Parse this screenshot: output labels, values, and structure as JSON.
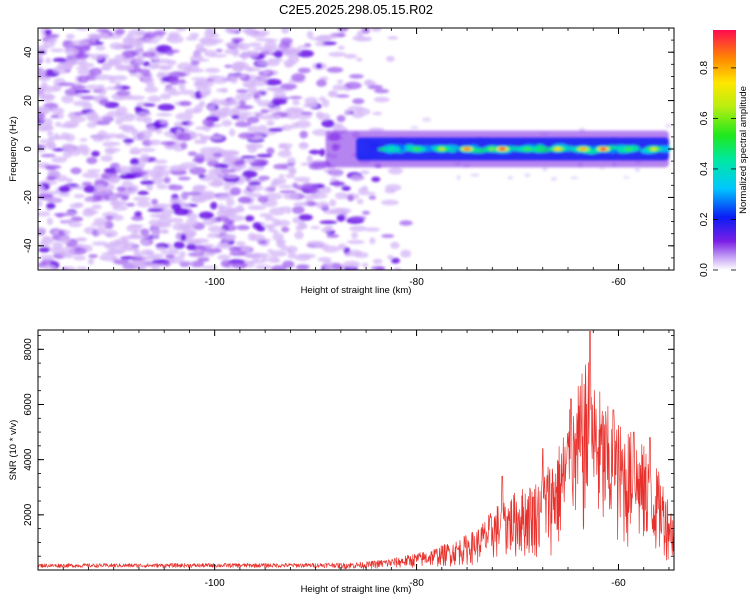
{
  "figure_title": "C2E5.2025.298.05.15.R02",
  "chart_data": [
    {
      "type": "heatmap",
      "title": "",
      "xlabel": "Height of straight line (km)",
      "ylabel": "Frequency (Hz)",
      "xlim": [
        -117.5,
        -54.5
      ],
      "ylim": [
        -50,
        50
      ],
      "xticks": [
        -100,
        -80,
        -60
      ],
      "yticks": [
        -40,
        -20,
        0,
        20,
        40
      ],
      "colorbar": {
        "label": "Normalized spectral amplitude",
        "range": [
          0,
          0.95
        ],
        "ticks": [
          0.0,
          0.2,
          0.4,
          0.6,
          0.8
        ]
      },
      "noise_region_x": [
        -117.5,
        -83
      ],
      "signal_band": {
        "x_start": -89,
        "x_end": -55,
        "center_freq_hz": 0,
        "halfwidth_hz": 4,
        "peaks": [
          {
            "x": -82.5,
            "amplitude": 0.45
          },
          {
            "x": -80,
            "amplitude": 0.55
          },
          {
            "x": -77.5,
            "amplitude": 0.65
          },
          {
            "x": -75,
            "amplitude": 0.85
          },
          {
            "x": -72.5,
            "amplitude": 0.6
          },
          {
            "x": -71.5,
            "amplitude": 0.9
          },
          {
            "x": -69,
            "amplitude": 0.55
          },
          {
            "x": -66,
            "amplitude": 0.75
          },
          {
            "x": -63.5,
            "amplitude": 0.8
          },
          {
            "x": -61.5,
            "amplitude": 0.9
          },
          {
            "x": -59,
            "amplitude": 0.55
          },
          {
            "x": -56.5,
            "amplitude": 0.7
          }
        ]
      }
    },
    {
      "type": "line",
      "title": "",
      "xlabel": "Height of straight line (km)",
      "ylabel": "SNR (10 * v/v)",
      "xlim": [
        -117.5,
        -54.5
      ],
      "ylim": [
        0,
        8700
      ],
      "xticks": [
        -100,
        -80,
        -60
      ],
      "yticks": [
        2000,
        4000,
        6000,
        8000
      ],
      "series": [
        {
          "name": "SNR",
          "color": "#e8312c",
          "envelope": {
            "x": [
              -117.5,
              -90,
              -85,
              -82,
              -79,
              -76,
              -74,
              -72,
              -70,
              -68,
              -66,
              -64.5,
              -63,
              -61.5,
              -60,
              -58.5,
              -57,
              -55.5,
              -54.5
            ],
            "y": [
              200,
              220,
              300,
              450,
              700,
              1100,
              1500,
              2400,
              2900,
              3300,
              4500,
              6200,
              7800,
              6200,
              5400,
              5000,
              4300,
              3200,
              2000
            ]
          },
          "peaks": [
            {
              "x": -62.8,
              "y": 8650
            },
            {
              "x": -64.7,
              "y": 6200
            },
            {
              "x": -60.5,
              "y": 5800
            },
            {
              "x": -58.5,
              "y": 5000
            },
            {
              "x": -56.9,
              "y": 4800
            },
            {
              "x": -67.5,
              "y": 4400
            },
            {
              "x": -71.5,
              "y": 3400
            }
          ]
        }
      ]
    }
  ]
}
